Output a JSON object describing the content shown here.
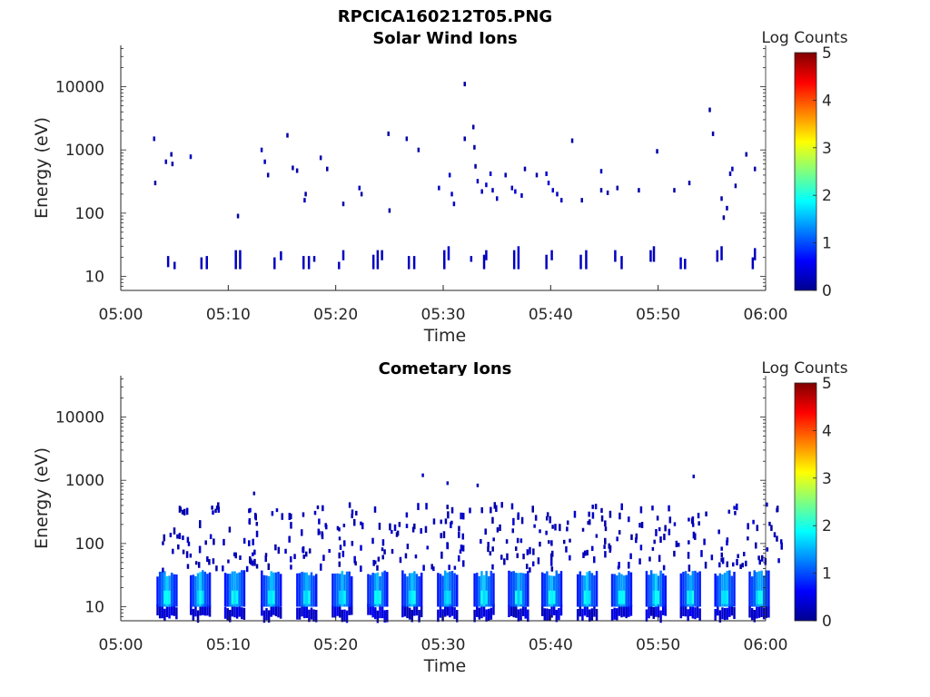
{
  "figure": {
    "title": "RPCICA160212T05.PNG"
  },
  "chart_data": [
    {
      "type": "heatmap",
      "title": "Solar Wind Ions",
      "xlabel": "Time",
      "ylabel": "Energy (eV)",
      "x_ticks": [
        "05:00",
        "05:10",
        "05:20",
        "05:30",
        "05:40",
        "05:50",
        "06:00"
      ],
      "xlim_minutes": [
        0,
        60
      ],
      "y_scale": "log",
      "y_ticks": [
        {
          "label": "10",
          "value": 10
        },
        {
          "label": "100",
          "value": 100
        },
        {
          "label": "1000",
          "value": 1000
        },
        {
          "label": "10000",
          "value": 10000
        }
      ],
      "ylim": [
        6,
        45000
      ],
      "colorbar": {
        "label": "Log Counts",
        "ticks": [
          "0",
          "1",
          "2",
          "3",
          "4",
          "5"
        ],
        "range": [
          0,
          5
        ],
        "colormap": "jet"
      },
      "points": [
        {
          "t": 3.0,
          "e": 1500,
          "v": 0.3
        },
        {
          "t": 3.1,
          "e": 300,
          "v": 0.2
        },
        {
          "t": 4.1,
          "e": 650,
          "v": 0.3
        },
        {
          "t": 4.6,
          "e": 850,
          "v": 0.2
        },
        {
          "t": 4.7,
          "e": 600,
          "v": 0.2
        },
        {
          "t": 6.4,
          "e": 780,
          "v": 0.3
        },
        {
          "t": 10.8,
          "e": 90,
          "v": 0.2
        },
        {
          "t": 13.0,
          "e": 1000,
          "v": 0.3
        },
        {
          "t": 13.3,
          "e": 650,
          "v": 0.3
        },
        {
          "t": 13.6,
          "e": 400,
          "v": 0.2
        },
        {
          "t": 15.4,
          "e": 1700,
          "v": 0.2
        },
        {
          "t": 15.9,
          "e": 520,
          "v": 0.2
        },
        {
          "t": 16.3,
          "e": 470,
          "v": 0.2
        },
        {
          "t": 17.0,
          "e": 160,
          "v": 0.3
        },
        {
          "t": 17.1,
          "e": 200,
          "v": 0.2
        },
        {
          "t": 18.5,
          "e": 750,
          "v": 0.2
        },
        {
          "t": 19.1,
          "e": 500,
          "v": 0.2
        },
        {
          "t": 20.6,
          "e": 140,
          "v": 0.2
        },
        {
          "t": 22.1,
          "e": 250,
          "v": 0.3
        },
        {
          "t": 22.3,
          "e": 200,
          "v": 0.2
        },
        {
          "t": 24.8,
          "e": 1800,
          "v": 0.2
        },
        {
          "t": 24.9,
          "e": 110,
          "v": 0.2
        },
        {
          "t": 26.5,
          "e": 1500,
          "v": 0.2
        },
        {
          "t": 27.6,
          "e": 1000,
          "v": 0.2
        },
        {
          "t": 29.5,
          "e": 250,
          "v": 0.3
        },
        {
          "t": 30.5,
          "e": 400,
          "v": 0.4
        },
        {
          "t": 30.7,
          "e": 200,
          "v": 0.4
        },
        {
          "t": 30.9,
          "e": 140,
          "v": 0.4
        },
        {
          "t": 31.9,
          "e": 11000,
          "v": 0.2
        },
        {
          "t": 31.9,
          "e": 1500,
          "v": 0.2
        },
        {
          "t": 32.7,
          "e": 2300,
          "v": 0.2
        },
        {
          "t": 32.8,
          "e": 1100,
          "v": 0.2
        },
        {
          "t": 32.9,
          "e": 550,
          "v": 0.2
        },
        {
          "t": 33.1,
          "e": 320,
          "v": 0.3
        },
        {
          "t": 33.5,
          "e": 220,
          "v": 0.3
        },
        {
          "t": 33.9,
          "e": 280,
          "v": 0.4
        },
        {
          "t": 34.3,
          "e": 420,
          "v": 0.4
        },
        {
          "t": 34.5,
          "e": 230,
          "v": 0.3
        },
        {
          "t": 34.9,
          "e": 170,
          "v": 0.3
        },
        {
          "t": 35.7,
          "e": 400,
          "v": 0.3
        },
        {
          "t": 36.3,
          "e": 250,
          "v": 0.3
        },
        {
          "t": 36.6,
          "e": 220,
          "v": 0.4
        },
        {
          "t": 37.2,
          "e": 190,
          "v": 0.3
        },
        {
          "t": 37.5,
          "e": 500,
          "v": 0.2
        },
        {
          "t": 38.6,
          "e": 400,
          "v": 0.2
        },
        {
          "t": 39.5,
          "e": 420,
          "v": 0.4
        },
        {
          "t": 39.7,
          "e": 300,
          "v": 0.4
        },
        {
          "t": 40.1,
          "e": 230,
          "v": 0.4
        },
        {
          "t": 40.5,
          "e": 200,
          "v": 0.3
        },
        {
          "t": 40.9,
          "e": 160,
          "v": 0.3
        },
        {
          "t": 41.9,
          "e": 1400,
          "v": 0.2
        },
        {
          "t": 42.8,
          "e": 160,
          "v": 0.2
        },
        {
          "t": 44.6,
          "e": 460,
          "v": 0.3
        },
        {
          "t": 44.6,
          "e": 230,
          "v": 0.2
        },
        {
          "t": 45.2,
          "e": 210,
          "v": 0.2
        },
        {
          "t": 46.1,
          "e": 250,
          "v": 0.2
        },
        {
          "t": 48.1,
          "e": 230,
          "v": 0.2
        },
        {
          "t": 49.8,
          "e": 950,
          "v": 0.2
        },
        {
          "t": 51.4,
          "e": 230,
          "v": 0.2
        },
        {
          "t": 52.8,
          "e": 300,
          "v": 0.2
        },
        {
          "t": 54.7,
          "e": 4300,
          "v": 0.2
        },
        {
          "t": 55.0,
          "e": 1800,
          "v": 0.2
        },
        {
          "t": 55.8,
          "e": 170,
          "v": 0.2
        },
        {
          "t": 56.0,
          "e": 85,
          "v": 0.2
        },
        {
          "t": 56.3,
          "e": 120,
          "v": 0.2
        },
        {
          "t": 56.6,
          "e": 420,
          "v": 0.3
        },
        {
          "t": 56.8,
          "e": 500,
          "v": 0.3
        },
        {
          "t": 57.1,
          "e": 270,
          "v": 0.2
        },
        {
          "t": 58.1,
          "e": 850,
          "v": 0.2
        },
        {
          "t": 58.9,
          "e": 500,
          "v": 0.2
        }
      ],
      "bursts": [
        {
          "t": 4.3,
          "e0": 14,
          "e1": 21,
          "v": 0.3
        },
        {
          "t": 4.9,
          "e0": 13,
          "e1": 17,
          "v": 0.3
        },
        {
          "t": 7.4,
          "e0": 13,
          "e1": 20,
          "v": 0.3
        },
        {
          "t": 7.9,
          "e0": 13,
          "e1": 21,
          "v": 0.3
        },
        {
          "t": 10.6,
          "e0": 13,
          "e1": 26,
          "v": 0.3
        },
        {
          "t": 11.0,
          "e0": 13,
          "e1": 26,
          "v": 0.3
        },
        {
          "t": 14.2,
          "e0": 13,
          "e1": 20,
          "v": 0.3
        },
        {
          "t": 14.8,
          "e0": 18,
          "e1": 25,
          "v": 0.3
        },
        {
          "t": 16.9,
          "e0": 13,
          "e1": 21,
          "v": 0.3
        },
        {
          "t": 17.4,
          "e0": 13,
          "e1": 21,
          "v": 0.3
        },
        {
          "t": 17.9,
          "e0": 17,
          "e1": 21,
          "v": 0.3
        },
        {
          "t": 20.2,
          "e0": 13,
          "e1": 17,
          "v": 0.3
        },
        {
          "t": 20.6,
          "e0": 18,
          "e1": 26,
          "v": 0.3
        },
        {
          "t": 23.4,
          "e0": 13,
          "e1": 22,
          "v": 0.3
        },
        {
          "t": 23.8,
          "e0": 13,
          "e1": 26,
          "v": 0.3
        },
        {
          "t": 24.2,
          "e0": 18,
          "e1": 26,
          "v": 0.3
        },
        {
          "t": 26.7,
          "e0": 13,
          "e1": 21,
          "v": 0.3
        },
        {
          "t": 27.2,
          "e0": 13,
          "e1": 21,
          "v": 0.3
        },
        {
          "t": 30.0,
          "e0": 13,
          "e1": 26,
          "v": 0.3
        },
        {
          "t": 30.4,
          "e0": 18,
          "e1": 30,
          "v": 0.4
        },
        {
          "t": 32.5,
          "e0": 17,
          "e1": 21,
          "v": 0.3
        },
        {
          "t": 33.7,
          "e0": 13,
          "e1": 22,
          "v": 0.3
        },
        {
          "t": 33.9,
          "e0": 18,
          "e1": 26,
          "v": 0.3
        },
        {
          "t": 36.5,
          "e0": 13,
          "e1": 26,
          "v": 0.3
        },
        {
          "t": 36.9,
          "e0": 13,
          "e1": 30,
          "v": 0.4
        },
        {
          "t": 39.5,
          "e0": 13,
          "e1": 22,
          "v": 0.3
        },
        {
          "t": 40.0,
          "e0": 18,
          "e1": 26,
          "v": 0.3
        },
        {
          "t": 42.7,
          "e0": 13,
          "e1": 22,
          "v": 0.3
        },
        {
          "t": 43.2,
          "e0": 13,
          "e1": 26,
          "v": 0.3
        },
        {
          "t": 45.9,
          "e0": 17,
          "e1": 26,
          "v": 0.3
        },
        {
          "t": 46.5,
          "e0": 13,
          "e1": 21,
          "v": 0.3
        },
        {
          "t": 49.2,
          "e0": 17,
          "e1": 26,
          "v": 0.3
        },
        {
          "t": 49.5,
          "e0": 17,
          "e1": 30,
          "v": 0.3
        },
        {
          "t": 52.0,
          "e0": 13,
          "e1": 20,
          "v": 0.4
        },
        {
          "t": 52.4,
          "e0": 13,
          "e1": 19,
          "v": 0.3
        },
        {
          "t": 55.4,
          "e0": 17,
          "e1": 26,
          "v": 0.3
        },
        {
          "t": 55.8,
          "e0": 18,
          "e1": 30,
          "v": 0.3
        },
        {
          "t": 58.7,
          "e0": 13,
          "e1": 20,
          "v": 0.3
        },
        {
          "t": 58.9,
          "e0": 18,
          "e1": 28,
          "v": 0.3
        }
      ]
    },
    {
      "type": "heatmap",
      "title": "Cometary Ions",
      "xlabel": "Time",
      "ylabel": "Energy (eV)",
      "x_ticks": [
        "05:00",
        "05:10",
        "05:20",
        "05:30",
        "05:40",
        "05:50",
        "06:00"
      ],
      "xlim_minutes": [
        0,
        60
      ],
      "y_scale": "log",
      "y_ticks": [
        {
          "label": "10",
          "value": 10
        },
        {
          "label": "100",
          "value": 100
        },
        {
          "label": "1000",
          "value": 1000
        },
        {
          "label": "10000",
          "value": 10000
        }
      ],
      "ylim": [
        6,
        45000
      ],
      "colorbar": {
        "label": "Log Counts",
        "ticks": [
          "0",
          "1",
          "2",
          "3",
          "4",
          "5"
        ],
        "range": [
          0,
          5
        ],
        "colormap": "jet"
      },
      "burst_times": [
        4.2,
        7.3,
        10.5,
        13.9,
        17.2,
        20.5,
        23.8,
        27.0,
        30.3,
        33.7,
        36.9,
        40.0,
        43.3,
        46.5,
        49.7,
        52.9,
        56.1,
        59.3
      ],
      "isolated_points": [
        {
          "t": 28.0,
          "e": 1200,
          "v": 0.3
        },
        {
          "t": 30.3,
          "e": 900,
          "v": 0.3
        },
        {
          "t": 33.1,
          "e": 830,
          "v": 0.3
        },
        {
          "t": 53.2,
          "e": 1150,
          "v": 0.3
        },
        {
          "t": 12.3,
          "e": 620,
          "v": 0.2
        }
      ]
    }
  ]
}
